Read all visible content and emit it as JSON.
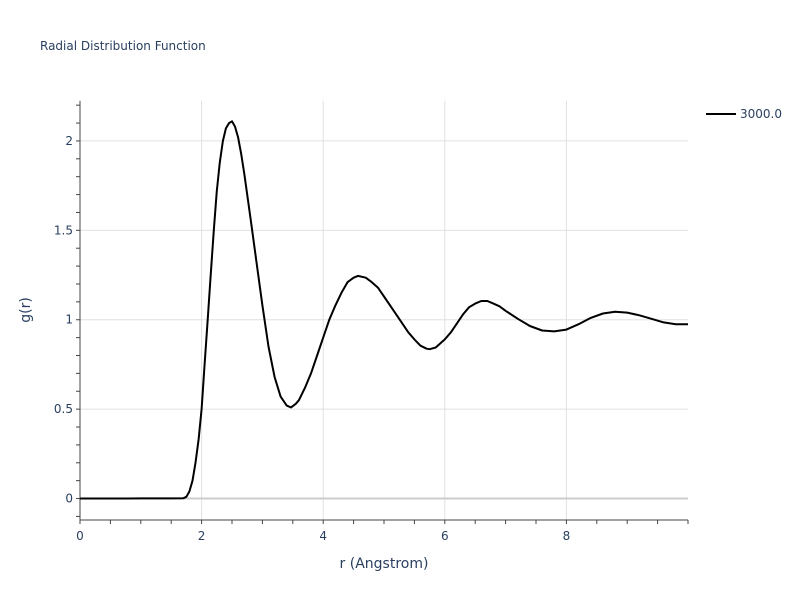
{
  "chart_data": {
    "type": "line",
    "title": "Radial Distribution Function",
    "xlabel": "r (Angstrom)",
    "ylabel": "g(r)",
    "xlim": [
      0,
      10
    ],
    "ylim": [
      -0.12,
      2.225
    ],
    "xticks": [
      0,
      2,
      4,
      6,
      8
    ],
    "xtick_labels": [
      "0",
      "2",
      "4",
      "6",
      "8"
    ],
    "yticks": [
      0,
      0.5,
      1,
      1.5,
      2
    ],
    "ytick_labels": [
      "0",
      "0.5",
      "1",
      "1.5",
      "2"
    ],
    "grid": true,
    "legend_position": "top-right outside",
    "series": [
      {
        "name": "3000.0",
        "color": "#000000",
        "x": [
          0,
          0.5,
          1.0,
          1.5,
          1.7,
          1.75,
          1.8,
          1.85,
          1.9,
          1.95,
          2.0,
          2.05,
          2.1,
          2.15,
          2.2,
          2.25,
          2.3,
          2.35,
          2.4,
          2.45,
          2.5,
          2.55,
          2.6,
          2.65,
          2.7,
          2.8,
          2.9,
          3.0,
          3.1,
          3.2,
          3.3,
          3.4,
          3.47,
          3.55,
          3.6,
          3.7,
          3.8,
          3.9,
          4.0,
          4.1,
          4.2,
          4.3,
          4.4,
          4.5,
          4.57,
          4.7,
          4.8,
          4.9,
          5.0,
          5.2,
          5.4,
          5.5,
          5.6,
          5.7,
          5.75,
          5.85,
          6.0,
          6.1,
          6.2,
          6.3,
          6.4,
          6.5,
          6.6,
          6.7,
          6.8,
          6.9,
          7.0,
          7.2,
          7.4,
          7.6,
          7.8,
          8.0,
          8.2,
          8.4,
          8.6,
          8.8,
          9.0,
          9.2,
          9.4,
          9.6,
          9.8,
          10.0
        ],
        "y": [
          0,
          0,
          0.001,
          0.001,
          0.002,
          0.01,
          0.04,
          0.1,
          0.2,
          0.33,
          0.5,
          0.75,
          1.0,
          1.25,
          1.5,
          1.72,
          1.88,
          2.0,
          2.07,
          2.1,
          2.11,
          2.08,
          2.02,
          1.93,
          1.82,
          1.58,
          1.33,
          1.08,
          0.85,
          0.68,
          0.57,
          0.52,
          0.51,
          0.53,
          0.55,
          0.62,
          0.7,
          0.8,
          0.9,
          1.0,
          1.08,
          1.15,
          1.21,
          1.235,
          1.245,
          1.235,
          1.21,
          1.18,
          1.13,
          1.03,
          0.93,
          0.89,
          0.855,
          0.838,
          0.835,
          0.845,
          0.89,
          0.93,
          0.98,
          1.03,
          1.07,
          1.09,
          1.105,
          1.105,
          1.09,
          1.075,
          1.05,
          1.005,
          0.965,
          0.94,
          0.935,
          0.945,
          0.975,
          1.01,
          1.035,
          1.045,
          1.04,
          1.025,
          1.005,
          0.985,
          0.975,
          0.975
        ]
      }
    ]
  }
}
